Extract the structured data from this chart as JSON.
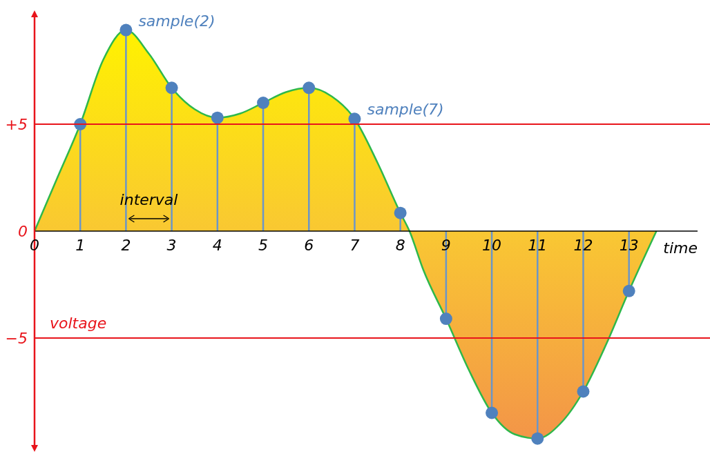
{
  "chart_data": {
    "type": "area",
    "xlabel": "time",
    "ylabel": "voltage",
    "xlim": [
      0,
      14.5
    ],
    "ylim": [
      -10,
      10
    ],
    "xticks": [
      0,
      1,
      2,
      3,
      4,
      5,
      6,
      7,
      8,
      9,
      10,
      11,
      12,
      13
    ],
    "yticks": [
      {
        "value": 5,
        "label": "+5"
      },
      0,
      {
        "value": -5,
        "label": "−5"
      }
    ],
    "series": [
      {
        "color": "#2eb84b",
        "x": [
          0,
          0.5,
          1,
          1.5,
          2,
          2.5,
          3,
          3.5,
          4,
          4.5,
          5,
          5.5,
          6,
          6.5,
          7,
          7.5,
          8,
          8.2,
          8.5,
          9,
          9.5,
          10,
          10.5,
          11,
          11.5,
          12,
          12.5,
          13,
          13.6
        ],
        "values": [
          0,
          2.5,
          5,
          8,
          9.4,
          8.3,
          6.7,
          5.7,
          5.3,
          5.5,
          6,
          6.5,
          6.7,
          6.3,
          5.25,
          3.2,
          0.85,
          0,
          -1.8,
          -4.1,
          -6.5,
          -8.5,
          -9.5,
          -9.7,
          -9,
          -7.5,
          -5.3,
          -2.8,
          0
        ]
      },
      {
        "type": "lollipop",
        "color": "#4f81bd",
        "marker": "circle",
        "x": [
          1,
          2,
          3,
          4,
          5,
          6,
          7,
          8,
          9,
          10,
          11,
          12,
          13
        ],
        "values": [
          5,
          9.4,
          6.7,
          5.3,
          6,
          6.7,
          5.25,
          0.85,
          -4.1,
          -8.5,
          -9.7,
          -7.5,
          -2.8
        ]
      }
    ],
    "ref_lines": [
      {
        "axis": "y",
        "value": 5,
        "color": "#e8141b"
      },
      {
        "axis": "y",
        "value": -5,
        "color": "#e8141b"
      }
    ],
    "annotations": [
      {
        "text": "sample(2)",
        "x": 2,
        "y": 9.4
      },
      {
        "text": "sample(7)",
        "x": 7,
        "y": 5.25
      },
      "interval"
    ],
    "grid": false
  }
}
